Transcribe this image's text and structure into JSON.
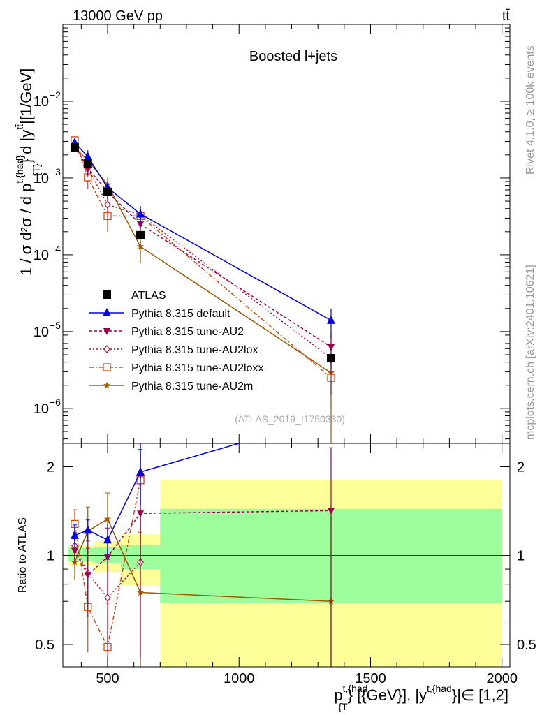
{
  "header": {
    "energy_label": "13000 GeV pp",
    "process_label": "tt̄"
  },
  "side_labels": {
    "rivet": "Rivet 4.1.0, ≥ 100k events",
    "mcplots": "mcplots.cern.ch [arXiv:2401.10621]"
  },
  "colors": {
    "ATLAS": "#000000",
    "default": "#0000e6",
    "tune-AU2": "#a0004a",
    "tune-AU2lox": "#b4143c",
    "tune-AU2loxx": "#d04a14",
    "tune-AU2m": "#a05a00",
    "band_stat": "#9cff9c",
    "band_total": "#ffff99"
  },
  "chart_data": [
    {
      "panel": "main",
      "type": "line",
      "title": "Boosted l+jets",
      "watermark": "(ATLAS_2019_I1750330)",
      "ylabel_main": "1 / σ d²σ / d p",
      "ylabel_sup": "t,{had}",
      "ylabel_sub": "{T}",
      "ylabel_tail": "} d |y",
      "ylabel_tail_sup": "tt̄",
      "ylabel_unit": "|[1/GeV]",
      "y_scale": "log",
      "ylim": [
        3.5e-07,
        0.1
      ],
      "xlim": [
        330,
        2030
      ],
      "y_ticks": [
        {
          "value": 1e-06,
          "label": "10",
          "exp": "−6"
        },
        {
          "value": 1e-05,
          "label": "10",
          "exp": "−5"
        },
        {
          "value": 0.0001,
          "label": "10",
          "exp": "−4"
        },
        {
          "value": 0.001,
          "label": "10",
          "exp": "−3"
        },
        {
          "value": 0.01,
          "label": "10",
          "exp": "−2"
        }
      ],
      "legend_position": "middle-left",
      "series": [
        {
          "name": "ATLAS",
          "key": "ATLAS",
          "marker": "square",
          "dash": "none",
          "x": [
            375,
            425,
            500,
            625,
            1350
          ],
          "y": [
            0.0025,
            0.00155,
            0.00066,
            0.00018,
            4.5e-06
          ],
          "err_lo": [
            0.0003,
            0.0002,
            0.0001,
            2e-05,
            6e-07
          ],
          "err_hi": [
            0.0003,
            0.0002,
            0.0001,
            2e-05,
            6e-07
          ]
        },
        {
          "name": "Pythia 8.315 default",
          "key": "default",
          "marker": "triangle-up",
          "dash": "none",
          "x": [
            375,
            425,
            500,
            625,
            1350
          ],
          "y": [
            0.0029,
            0.0019,
            0.00075,
            0.00034,
            1.4e-05
          ],
          "err_lo": [
            0.0003,
            0.0004,
            0.00015,
            9e-05,
            6e-06
          ],
          "err_hi": [
            0.0003,
            0.0004,
            0.00015,
            9e-05,
            6e-06
          ]
        },
        {
          "name": "Pythia 8.315 tune-AU2",
          "key": "tune-AU2",
          "marker": "triangle-down",
          "dash": "4,3",
          "x": [
            375,
            425,
            500,
            625,
            1350
          ],
          "y": [
            0.0026,
            0.00135,
            0.00066,
            0.00025,
            6.3e-06
          ],
          "err_lo": [
            0.0003,
            0.0003,
            0.00015,
            8e-05,
            3e-06
          ],
          "err_hi": [
            0.0003,
            0.0003,
            0.00015,
            8e-05,
            3e-06
          ]
        },
        {
          "name": "Pythia 8.315 tune-AU2lox",
          "key": "tune-AU2lox",
          "marker": "diamond-open",
          "dash": "2,3",
          "x": [
            375,
            425,
            500,
            625,
            1350
          ],
          "y": [
            0.0027,
            0.00135,
            0.00045,
            0.00033,
            4.5e-06
          ],
          "err_lo": [
            0.0003,
            0.0003,
            0.00015,
            0.0001,
            3e-06
          ],
          "err_hi": [
            0.0003,
            0.0003,
            0.00015,
            0.0001,
            3e-06
          ]
        },
        {
          "name": "Pythia 8.315 tune-AU2loxx",
          "key": "tune-AU2loxx",
          "marker": "square-open",
          "dash": "6,3,2,3",
          "x": [
            375,
            425,
            500,
            625,
            1350
          ],
          "y": [
            0.0031,
            0.00102,
            0.00032,
            0.00032,
            2.5e-06
          ],
          "err_lo": [
            0.0004,
            0.0003,
            0.00012,
            0.0001,
            1.5e-06
          ],
          "err_hi": [
            0.0004,
            0.0003,
            0.00012,
            0.0001,
            1.5e-06
          ]
        },
        {
          "name": "Pythia 8.315 tune-AU2m",
          "key": "tune-AU2m",
          "marker": "star",
          "dash": "none",
          "x": [
            375,
            425,
            500,
            625,
            1350
          ],
          "y": [
            0.0025,
            0.0017,
            0.00082,
            0.000128,
            2.9e-06
          ],
          "err_lo": [
            0.0003,
            0.0004,
            0.0002,
            5e-05,
            2.6e-06
          ],
          "err_hi": [
            0.0003,
            0.0004,
            0.0002,
            5e-05,
            2.6e-06
          ]
        }
      ]
    },
    {
      "panel": "ratio",
      "type": "line",
      "ylabel": "Ratio to ATLAS",
      "xlabel": "p",
      "xlabel_sup": "t,{had",
      "xlabel_sub": "{T",
      "xlabel_mid": "} [{GeV}], |y",
      "xlabel_sup2": "t,{had",
      "xlabel_tail": "}|∈ [1,2]",
      "y_scale": "log",
      "ylim": [
        0.42,
        2.4
      ],
      "xlim": [
        330,
        2030
      ],
      "x_ticks": [
        500,
        1000,
        1500,
        2000
      ],
      "y_ticks": [
        {
          "value": 0.5,
          "label": "0.5"
        },
        {
          "value": 1,
          "label": "1"
        },
        {
          "value": 2,
          "label": "2"
        }
      ],
      "bands": [
        {
          "x0": 350,
          "x1": 400,
          "stat": [
            0.96,
            1.06
          ],
          "total": [
            0.93,
            1.09
          ]
        },
        {
          "x0": 400,
          "x1": 450,
          "stat": [
            0.96,
            1.06
          ],
          "total": [
            0.93,
            1.09
          ]
        },
        {
          "x0": 450,
          "x1": 550,
          "stat": [
            0.94,
            1.07
          ],
          "total": [
            0.88,
            1.12
          ]
        },
        {
          "x0": 550,
          "x1": 700,
          "stat": [
            0.9,
            1.09
          ],
          "total": [
            0.79,
            1.18
          ]
        },
        {
          "x0": 700,
          "x1": 2000,
          "stat": [
            0.69,
            1.44
          ],
          "total": [
            0.37,
            1.8
          ]
        }
      ],
      "series": [
        {
          "key": "default",
          "x": [
            375,
            425,
            500,
            625,
            1000
          ],
          "y": [
            1.17,
            1.22,
            1.13,
            1.92,
            2.4
          ],
          "err_lo": [
            0.1,
            0.1,
            0.15,
            0.45,
            0
          ],
          "err_hi": [
            0.1,
            0.1,
            0.15,
            0.45,
            0
          ]
        },
        {
          "key": "tune-AU2",
          "x": [
            375,
            425,
            500,
            625,
            1350
          ],
          "y": [
            1.04,
            0.86,
            0.99,
            1.39,
            1.42
          ],
          "err_lo": [
            0.1,
            0.2,
            0.25,
            0.45,
            1.0
          ],
          "err_hi": [
            0.1,
            0.2,
            0.25,
            0.9,
            0.9
          ]
        },
        {
          "key": "tune-AU2lox",
          "x": [
            375,
            425,
            500,
            625
          ],
          "y": [
            1.08,
            0.87,
            0.72,
            0.95
          ],
          "err_lo": [
            0.12,
            0.25,
            0.25,
            0.5
          ],
          "err_hi": [
            0.12,
            0.25,
            0.25,
            0.5
          ]
        },
        {
          "key": "tune-AU2loxx",
          "x": [
            375,
            425,
            500,
            625
          ],
          "y": [
            1.28,
            0.67,
            0.49,
            1.8
          ],
          "err_lo": [
            0.15,
            0.2,
            0.2,
            0.6
          ],
          "err_hi": [
            0.15,
            0.2,
            0.2,
            0.6
          ]
        },
        {
          "key": "tune-AU2m",
          "x": [
            375,
            425,
            500,
            625,
            1350
          ],
          "y": [
            0.95,
            1.21,
            1.33,
            0.75,
            0.7
          ],
          "err_lo": [
            0.12,
            0.25,
            0.3,
            0.45,
            0.65
          ],
          "err_hi": [
            0.12,
            0.25,
            0.3,
            0.45,
            0.65
          ]
        }
      ]
    }
  ]
}
